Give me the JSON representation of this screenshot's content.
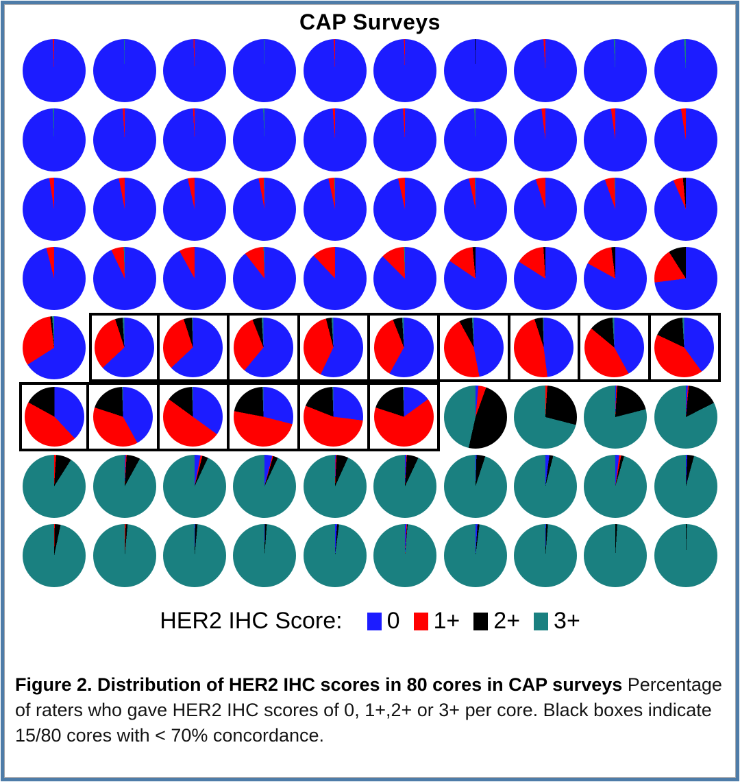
{
  "figure": {
    "title": "CAP Surveys",
    "legend_label": "HER2 IHC Score:",
    "caption_bold": "Figure 2. Distribution of HER2 IHC scores in 80 cores in CAP surveys",
    "caption_regular": " Percentage of raters who gave HER2 IHC scores of 0, 1+,2+ or 3+ per core. Black boxes indicate 15/80 cores with < 70% concordance."
  },
  "frame": {
    "border_color": "#4E7CA8"
  },
  "chart_data": {
    "type": "pie",
    "title": "CAP Surveys",
    "description": "Grid of 80 pie charts (8 rows x 10 columns), one per tissue core. Each pie shows the percentage of raters assigning HER2 IHC score 0, 1+, 2+ or 3+. Slices start at 12 o'clock and run clockwise in score order. Black boxes mark 15/80 cores with < 70% concordance.",
    "slice_order": [
      "0",
      "1+",
      "2+",
      "3+"
    ],
    "slice_colors": [
      "#1C1CFF",
      "#FF0000",
      "#000000",
      "#1A8080"
    ],
    "legend": [
      {
        "label": "0",
        "color": "#1C1CFF"
      },
      {
        "label": "1+",
        "color": "#FF0000"
      },
      {
        "label": "2+",
        "color": "#000000"
      },
      {
        "label": "3+",
        "color": "#1A8080"
      }
    ],
    "legend_position": "bottom",
    "boxed_cells": [
      {
        "row": 5,
        "cols": [
          2,
          3,
          4,
          5,
          6,
          7,
          8,
          9,
          10
        ]
      },
      {
        "row": 6,
        "cols": [
          1,
          2,
          3,
          4,
          5,
          6
        ]
      }
    ],
    "boxed_meaning": "< 70% concordance",
    "rows": [
      [
        [
          99.3,
          0.7,
          0,
          0
        ],
        [
          99.6,
          0,
          0,
          0.4
        ],
        [
          99.4,
          0.6,
          0,
          0
        ],
        [
          99.6,
          0,
          0,
          0.4
        ],
        [
          99.3,
          0.7,
          0,
          0
        ],
        [
          99.5,
          0.5,
          0,
          0
        ],
        [
          99.6,
          0,
          0.4,
          0
        ],
        [
          99.0,
          1.0,
          0,
          0
        ],
        [
          99.2,
          0,
          0,
          0.8
        ],
        [
          99.0,
          0,
          0,
          1.0
        ]
      ],
      [
        [
          99.3,
          0,
          0,
          0.7
        ],
        [
          99.0,
          1.0,
          0,
          0
        ],
        [
          99.2,
          0.8,
          0,
          0
        ],
        [
          99.3,
          0,
          0,
          0.7
        ],
        [
          98.8,
          1.2,
          0,
          0
        ],
        [
          99.0,
          1.0,
          0,
          0
        ],
        [
          99.3,
          0,
          0,
          0.7
        ],
        [
          98.0,
          2.0,
          0,
          0
        ],
        [
          97.8,
          2.2,
          0,
          0
        ],
        [
          97.5,
          2.5,
          0,
          0
        ]
      ],
      [
        [
          97.5,
          2.5,
          0,
          0
        ],
        [
          97.0,
          3.0,
          0,
          0
        ],
        [
          96.5,
          3.5,
          0,
          0
        ],
        [
          97.0,
          2.6,
          0,
          0.4
        ],
        [
          96.6,
          3.0,
          0,
          0.4
        ],
        [
          96.5,
          3.5,
          0,
          0
        ],
        [
          96.6,
          3.0,
          0,
          0.4
        ],
        [
          95.0,
          5.0,
          0,
          0
        ],
        [
          94.6,
          5.0,
          0,
          0.4
        ],
        [
          93.5,
          5.0,
          1.5,
          0
        ]
      ],
      [
        [
          96.0,
          4.0,
          0,
          0
        ],
        [
          93.0,
          6.5,
          0,
          0.5
        ],
        [
          92.0,
          8.0,
          0,
          0
        ],
        [
          89.5,
          10.0,
          0,
          0.5
        ],
        [
          88.0,
          12.0,
          0,
          0
        ],
        [
          87.5,
          12.0,
          0,
          0.5
        ],
        [
          84.5,
          14.0,
          1.5,
          0
        ],
        [
          84.0,
          15.0,
          1.0,
          0
        ],
        [
          83.0,
          15.0,
          2.0,
          0
        ],
        [
          73.0,
          18.0,
          9.0,
          0
        ]
      ],
      [
        [
          66.0,
          32.0,
          1.0,
          1.0
        ],
        [
          63.0,
          32.0,
          4.0,
          1.0
        ],
        [
          63.0,
          32.0,
          4.5,
          0.5
        ],
        [
          61.0,
          33.0,
          5.0,
          1.0
        ],
        [
          57.0,
          39.0,
          3.0,
          1.0
        ],
        [
          58.0,
          36.0,
          5.0,
          1.0
        ],
        [
          47.0,
          45.0,
          7.0,
          1.0
        ],
        [
          48.0,
          47.0,
          4.5,
          0.5
        ],
        [
          42.0,
          44.0,
          13.0,
          1.0
        ],
        [
          40.0,
          42.0,
          17.0,
          1.0
        ]
      ],
      [
        [
          38.0,
          45.0,
          17.0,
          0
        ],
        [
          42.0,
          38.0,
          19.5,
          0.5
        ],
        [
          35.0,
          50.0,
          14.5,
          0.5
        ],
        [
          29.0,
          49.0,
          21.5,
          0.5
        ],
        [
          27.0,
          54.0,
          18.5,
          0.5
        ],
        [
          15.0,
          65.0,
          19.5,
          0.5
        ],
        [
          1.5,
          4.0,
          48.0,
          46.5
        ],
        [
          0,
          1.0,
          28.0,
          71.0
        ],
        [
          0.5,
          0.5,
          20.0,
          79.0
        ],
        [
          1.0,
          0.5,
          16.0,
          82.5
        ]
      ],
      [
        [
          0,
          1.0,
          8.0,
          91.0
        ],
        [
          0.5,
          0.5,
          7.0,
          92.0
        ],
        [
          3.0,
          1.0,
          3.0,
          93.0
        ],
        [
          4.0,
          0.5,
          2.5,
          93.0
        ],
        [
          0.3,
          0.5,
          6.0,
          93.2
        ],
        [
          0.7,
          0.3,
          6.0,
          93.0
        ],
        [
          0.5,
          0,
          4.5,
          95.0
        ],
        [
          2.0,
          0,
          2.0,
          96.0
        ],
        [
          2.0,
          1.0,
          1.5,
          95.5
        ],
        [
          0.7,
          0,
          3.5,
          95.8
        ]
      ],
      [
        [
          0,
          0.3,
          3.0,
          96.7
        ],
        [
          0,
          0.5,
          1.0,
          98.5
        ],
        [
          0.3,
          0,
          1.2,
          98.5
        ],
        [
          0.2,
          0,
          1.0,
          98.8
        ],
        [
          1.0,
          0,
          1.0,
          98.0
        ],
        [
          0.8,
          0.3,
          0.3,
          98.6
        ],
        [
          1.0,
          0,
          1.0,
          98.0
        ],
        [
          0.3,
          0,
          1.0,
          98.7
        ],
        [
          0,
          0,
          1.0,
          99.0
        ],
        [
          0,
          0,
          0.5,
          99.5
        ]
      ]
    ]
  }
}
